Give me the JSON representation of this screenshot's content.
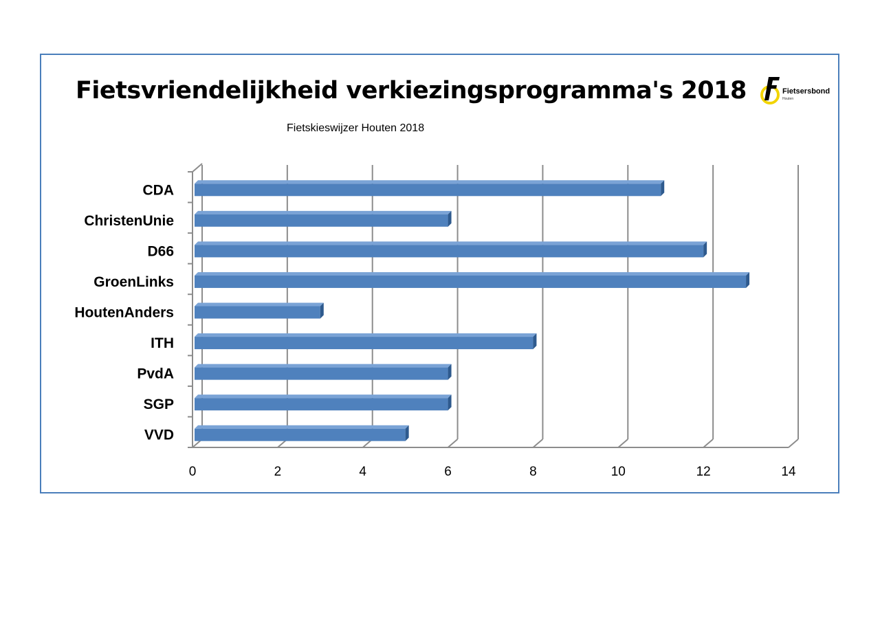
{
  "chart_data": {
    "type": "bar",
    "orientation": "horizontal",
    "title": "Fietsvriendelijkheid verkiezingsprogramma's 2018",
    "subtitle": "Fietskieswijzer Houten 2018",
    "categories": [
      "CDA",
      "ChristenUnie",
      "D66",
      "GroenLinks",
      "HoutenAnders",
      "ITH",
      "PvdA",
      "SGP",
      "VVD"
    ],
    "values": [
      11,
      6,
      12,
      13,
      3,
      8,
      6,
      6,
      5
    ],
    "xlim": [
      0,
      14
    ],
    "xticks": [
      "0",
      "2",
      "4",
      "6",
      "8",
      "10",
      "12",
      "14"
    ],
    "grid": true,
    "legend": "none",
    "bar_color": "#4f81bd",
    "bar_side_color": "#2e5a8e",
    "bar_top_color": "#7aa3d6",
    "frame_color": "#4a7ebb"
  },
  "logo": {
    "text": "Fietsersbond",
    "subtext": "Houten",
    "ring_color": "#f2d400",
    "letter": "F"
  }
}
